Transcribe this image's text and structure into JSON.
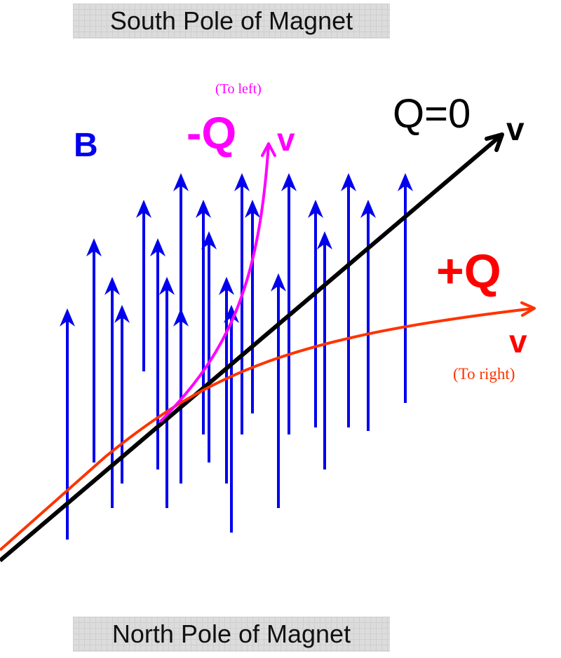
{
  "poles": {
    "top": "South Pole of Magnet",
    "bottom": "North Pole of Magnet"
  },
  "labels": {
    "field": "B",
    "neutral_charge": "Q=0",
    "neutral_velocity": "v",
    "negative_charge": "-Q",
    "negative_velocity": "v",
    "negative_direction": "(To left)",
    "positive_charge": "+Q",
    "positive_velocity": "v",
    "positive_direction": "(To right)"
  },
  "colors": {
    "field_lines": "#0000ee",
    "neutral_path": "#000000",
    "negative_path": "#ff00ff",
    "positive_path": "#ff3300",
    "positive_label": "#ff0000",
    "pole_background": "#dcdcdc"
  },
  "icons": {
    "field_arrow": "arrow-up",
    "path_arrow": "open-arrowhead"
  }
}
